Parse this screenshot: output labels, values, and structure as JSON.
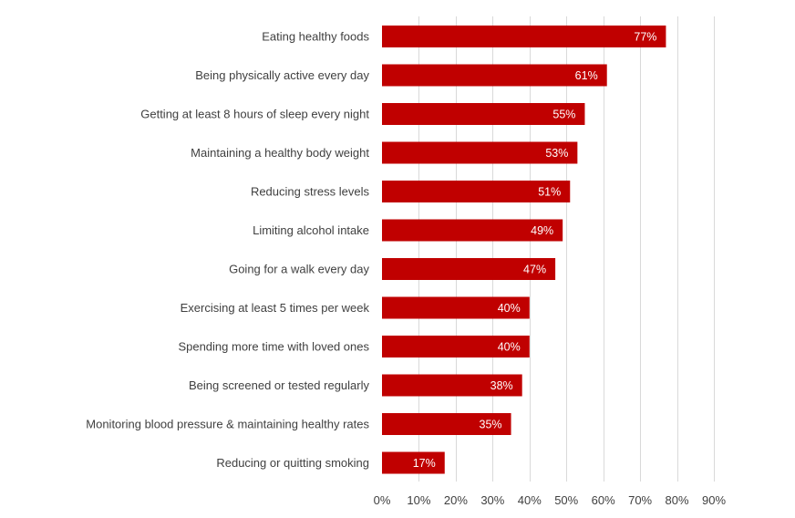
{
  "chart_data": {
    "type": "bar",
    "orientation": "horizontal",
    "title": "",
    "xlabel": "",
    "ylabel": "",
    "categories": [
      "Eating healthy foods",
      "Being physically active every day",
      "Getting at least 8 hours of sleep every night",
      "Maintaining a healthy body weight",
      "Reducing stress levels",
      "Limiting alcohol intake",
      "Going for a walk every day",
      "Exercising at least 5 times per week",
      "Spending more time with loved ones",
      "Being screened or tested regularly",
      "Monitoring blood pressure & maintaining healthy rates",
      "Reducing or quitting smoking"
    ],
    "values": [
      77,
      61,
      55,
      53,
      51,
      49,
      47,
      40,
      40,
      38,
      35,
      17
    ],
    "data_labels": [
      "77%",
      "61%",
      "55%",
      "53%",
      "51%",
      "49%",
      "47%",
      "40%",
      "40%",
      "38%",
      "35%",
      "17%"
    ],
    "xlim": [
      0,
      90
    ],
    "x_ticks": [
      0,
      10,
      20,
      30,
      40,
      50,
      60,
      70,
      80,
      90
    ],
    "x_tick_labels": [
      "0%",
      "10%",
      "20%",
      "30%",
      "40%",
      "50%",
      "60%",
      "70%",
      "80%",
      "90%"
    ],
    "grid": true,
    "legend": "none",
    "bar_color": "#c00000"
  }
}
